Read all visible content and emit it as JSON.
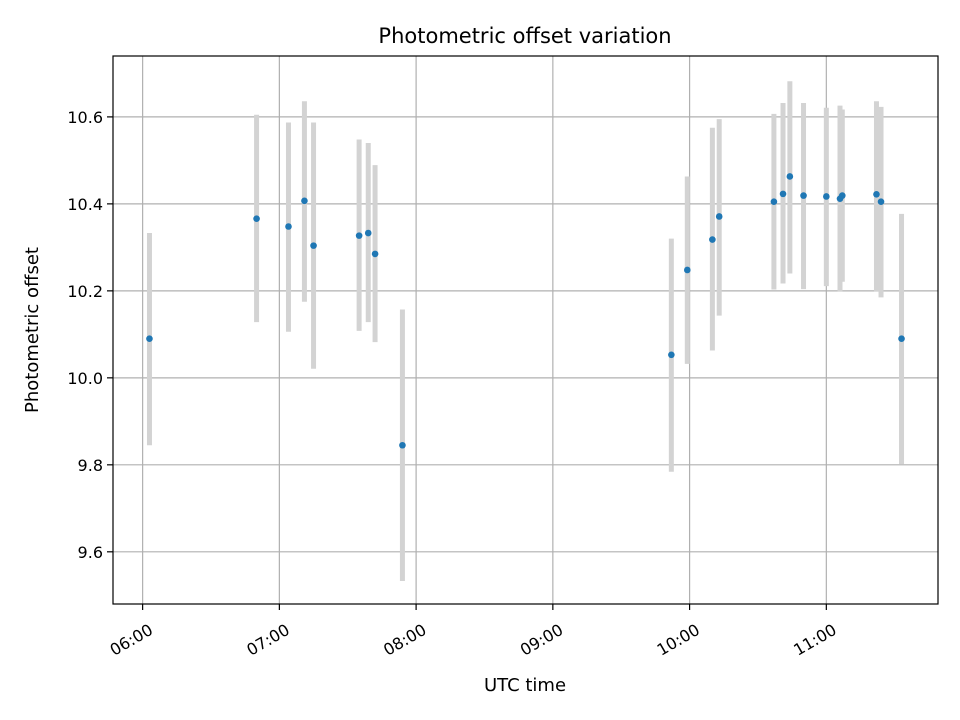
{
  "chart_data": {
    "type": "scatter",
    "title": "Photometric offset variation",
    "xlabel": "UTC time",
    "ylabel": "Photometric offset",
    "x_unit": "UTC time (HH:MM)",
    "xlim": [
      "05:47",
      "11:49"
    ],
    "ylim": [
      9.48,
      10.74
    ],
    "x_ticks": [
      "06:00",
      "07:00",
      "08:00",
      "09:00",
      "10:00",
      "11:00"
    ],
    "y_ticks": [
      "9.6",
      "9.8",
      "10.0",
      "10.2",
      "10.4",
      "10.6"
    ],
    "grid": true,
    "colors": {
      "point": "#1f77b4",
      "errorbar": "#d3d3d3",
      "grid": "#b0b0b0"
    },
    "series": [
      {
        "points": [
          {
            "x": "06:03",
            "y": 10.09,
            "yerr_low": 9.845,
            "yerr_high": 10.333
          },
          {
            "x": "06:50",
            "y": 10.366,
            "yerr_low": 10.128,
            "yerr_high": 10.605
          },
          {
            "x": "07:04",
            "y": 10.348,
            "yerr_low": 10.106,
            "yerr_high": 10.587
          },
          {
            "x": "07:11",
            "y": 10.407,
            "yerr_low": 10.175,
            "yerr_high": 10.636
          },
          {
            "x": "07:15",
            "y": 10.304,
            "yerr_low": 10.021,
            "yerr_high": 10.587
          },
          {
            "x": "07:35",
            "y": 10.327,
            "yerr_low": 10.108,
            "yerr_high": 10.548
          },
          {
            "x": "07:39",
            "y": 10.333,
            "yerr_low": 10.128,
            "yerr_high": 10.54
          },
          {
            "x": "07:42",
            "y": 10.285,
            "yerr_low": 10.082,
            "yerr_high": 10.489
          },
          {
            "x": "07:54",
            "y": 9.845,
            "yerr_low": 9.533,
            "yerr_high": 10.157
          },
          {
            "x": "09:52",
            "y": 10.053,
            "yerr_low": 9.784,
            "yerr_high": 10.32
          },
          {
            "x": "09:59",
            "y": 10.248,
            "yerr_low": 10.032,
            "yerr_high": 10.463
          },
          {
            "x": "10:10",
            "y": 10.318,
            "yerr_low": 10.063,
            "yerr_high": 10.575
          },
          {
            "x": "10:13",
            "y": 10.371,
            "yerr_low": 10.143,
            "yerr_high": 10.595
          },
          {
            "x": "10:37",
            "y": 10.405,
            "yerr_low": 10.203,
            "yerr_high": 10.607
          },
          {
            "x": "10:41",
            "y": 10.423,
            "yerr_low": 10.217,
            "yerr_high": 10.632
          },
          {
            "x": "10:44",
            "y": 10.463,
            "yerr_low": 10.24,
            "yerr_high": 10.682
          },
          {
            "x": "10:50",
            "y": 10.419,
            "yerr_low": 10.204,
            "yerr_high": 10.632
          },
          {
            "x": "11:00",
            "y": 10.417,
            "yerr_low": 10.211,
            "yerr_high": 10.621
          },
          {
            "x": "11:06",
            "y": 10.412,
            "yerr_low": 10.199,
            "yerr_high": 10.626
          },
          {
            "x": "11:07",
            "y": 10.419,
            "yerr_low": 10.221,
            "yerr_high": 10.617
          },
          {
            "x": "11:22",
            "y": 10.422,
            "yerr_low": 10.199,
            "yerr_high": 10.636
          },
          {
            "x": "11:24",
            "y": 10.405,
            "yerr_low": 10.185,
            "yerr_high": 10.623
          },
          {
            "x": "11:33",
            "y": 10.09,
            "yerr_low": 9.801,
            "yerr_high": 10.377
          }
        ]
      }
    ]
  }
}
